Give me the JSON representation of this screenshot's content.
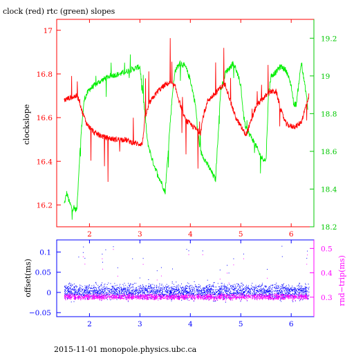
{
  "title": "clock (red) rtc (green) slopes",
  "footer": "2015-11-01 monopole.physics.ubc.ca",
  "colors": {
    "clock": "#ff0000",
    "rtc": "#00ee00",
    "offset": "#0000ff",
    "rndtrip": "#ff00ff",
    "frame_top": "#ff0000",
    "frame_bottom": "#0000ff"
  },
  "chart_data": [
    {
      "type": "line",
      "title": "clock (red) rtc (green) slopes",
      "xlabel": "",
      "ylabel": "clockslope",
      "y2label": "",
      "xlim": [
        1.35,
        6.45
      ],
      "ylim": [
        16.1,
        17.05
      ],
      "y2lim": [
        18.2,
        19.3
      ],
      "x_ticks": [
        "2",
        "3",
        "4",
        "5",
        "6"
      ],
      "y_ticks": [
        "16.2",
        "16.4",
        "16.6",
        "16.8",
        "17"
      ],
      "y2_ticks": [
        "18.2",
        "18.4",
        "18.6",
        "18.8",
        "19",
        "19.2"
      ],
      "series": [
        {
          "axis": "left",
          "x": [
            1.5,
            1.6,
            1.75,
            1.8,
            1.85,
            1.95,
            2.1,
            2.3,
            2.5,
            2.7,
            2.8,
            2.95,
            3.05,
            3.1,
            3.2,
            3.35,
            3.5,
            3.6,
            3.7,
            3.8,
            3.9,
            4.05,
            4.2,
            4.25,
            4.35,
            4.5,
            4.6,
            4.7,
            4.8,
            4.9,
            5.0,
            5.05,
            5.1,
            5.2,
            5.3,
            5.45,
            5.6,
            5.7,
            5.8,
            5.9,
            6.0,
            6.1,
            6.2,
            6.3,
            6.35
          ],
          "values": [
            16.68,
            16.69,
            16.7,
            16.68,
            16.63,
            16.57,
            16.53,
            16.51,
            16.5,
            16.5,
            16.49,
            16.48,
            16.48,
            16.6,
            16.67,
            16.72,
            16.75,
            16.76,
            16.74,
            16.66,
            16.59,
            16.56,
            16.53,
            16.6,
            16.68,
            16.71,
            16.74,
            16.75,
            16.67,
            16.6,
            16.56,
            16.54,
            16.52,
            16.58,
            16.65,
            16.69,
            16.72,
            16.72,
            16.63,
            16.57,
            16.56,
            16.56,
            16.58,
            16.66,
            16.7
          ]
        },
        {
          "axis": "right",
          "x": [
            1.5,
            1.55,
            1.6,
            1.65,
            1.75,
            1.8,
            1.85,
            1.9,
            2.0,
            2.2,
            2.4,
            2.6,
            2.8,
            3.0,
            3.1,
            3.15,
            3.25,
            3.35,
            3.45,
            3.5,
            3.6,
            3.65,
            3.7,
            3.75,
            3.8,
            3.9,
            4.0,
            4.1,
            4.15,
            4.2,
            4.3,
            4.4,
            4.5,
            4.6,
            4.7,
            4.8,
            4.85,
            4.9,
            5.0,
            5.05,
            5.1,
            5.2,
            5.3,
            5.4,
            5.5,
            5.55,
            5.6,
            5.7,
            5.75,
            5.8,
            5.9,
            6.0,
            6.05,
            6.1,
            6.2,
            6.3,
            6.33
          ],
          "values": [
            18.32,
            18.38,
            18.33,
            18.3,
            18.29,
            18.55,
            18.75,
            18.88,
            18.93,
            18.97,
            19.0,
            19.01,
            19.03,
            19.05,
            18.8,
            18.65,
            18.55,
            18.48,
            18.42,
            18.38,
            18.75,
            18.92,
            19.03,
            19.05,
            19.07,
            19.05,
            18.98,
            18.85,
            18.7,
            18.6,
            18.55,
            18.5,
            18.45,
            18.92,
            19.02,
            19.05,
            19.07,
            19.04,
            18.95,
            18.8,
            18.72,
            18.68,
            18.63,
            18.57,
            18.55,
            18.9,
            19.0,
            19.02,
            19.04,
            19.05,
            19.03,
            18.95,
            18.85,
            18.85,
            19.07,
            18.9,
            18.82
          ]
        }
      ]
    },
    {
      "type": "scatter",
      "xlabel": "",
      "ylabel": "offset(ms)",
      "y2label": "rnd−trip(ms)",
      "xlim": [
        1.35,
        6.45
      ],
      "ylim": [
        -0.06,
        0.13
      ],
      "y2lim": [
        0.22,
        0.535
      ],
      "x_ticks": [
        "2",
        "3",
        "4",
        "5",
        "6"
      ],
      "y_ticks": [
        "−0.05",
        "0",
        "0.05",
        "0.1"
      ],
      "y2_ticks": [
        "0.3",
        "0.4",
        "0.5"
      ],
      "series": [
        {
          "axis": "left",
          "x_range": [
            1.5,
            6.35
          ],
          "typical_band": [
            -0.025,
            0.03
          ],
          "spike_max": 0.12
        },
        {
          "axis": "right",
          "x_range": [
            1.5,
            6.35
          ],
          "typical_band": [
            0.285,
            0.32
          ],
          "spike_max": 0.51
        }
      ]
    }
  ]
}
